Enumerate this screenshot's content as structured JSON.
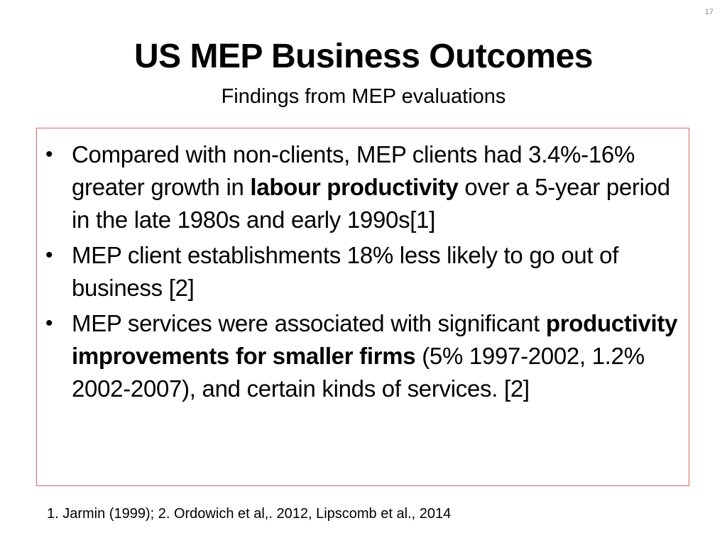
{
  "slide": {
    "number": "17",
    "title": "US MEP Business Outcomes",
    "subtitle": "Findings from MEP evaluations"
  },
  "bullets": [
    {
      "pre": "Compared with non-clients, MEP clients had 3.4%-16% greater growth in ",
      "bold": "labour productivity",
      "post": " over a 5-year period in the late 1980s and early 1990s[1]"
    },
    {
      "pre": "MEP client establishments 18% less likely to go out of business [2]",
      "bold": "",
      "post": ""
    },
    {
      "pre": "MEP services were associated with significant ",
      "bold": "productivity improvements for smaller firms",
      "post": " (5% 1997-2002, 1.2% 2002-2007), and certain kinds of services. [2]"
    }
  ],
  "bullet_glyph": "•",
  "footnote": "1. Jarmin (1999); 2. Ordowich et al,. 2012, Lipscomb et al., 2014",
  "colors": {
    "box_border": "#d9666b",
    "slide_number": "#8c8c8c"
  }
}
